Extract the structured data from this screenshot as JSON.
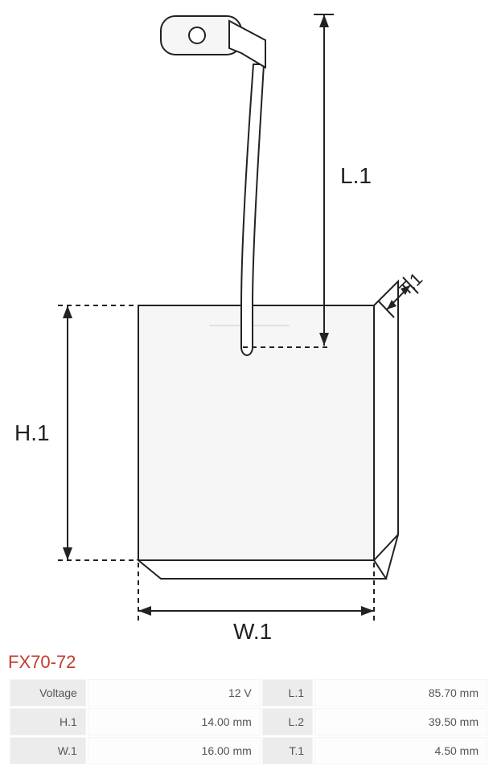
{
  "part": {
    "title": "FX70-72"
  },
  "diagram": {
    "labels": {
      "L1": "L.1",
      "H1": "H.1",
      "W1": "W.1",
      "T1": "T.1"
    },
    "colors": {
      "stroke": "#222222",
      "fill_block": "#f6f6f6",
      "fill_terminal": "#f6f6f6",
      "background": "#ffffff",
      "label_text": "#222222"
    },
    "stroke_width": 2,
    "font_size_label": 28,
    "font_family": "Arial"
  },
  "specs": {
    "rows": [
      {
        "left_label": "Voltage",
        "left_value": "12 V",
        "right_label": "L.1",
        "right_value": "85.70 mm"
      },
      {
        "left_label": "H.1",
        "left_value": "14.00 mm",
        "right_label": "L.2",
        "right_value": "39.50 mm"
      },
      {
        "left_label": "W.1",
        "left_value": "16.00 mm",
        "right_label": "T.1",
        "right_value": "4.50 mm"
      }
    ]
  },
  "table_style": {
    "label_bg": "#ececec",
    "value_bg": "#fdfdfd",
    "border_color": "#f4f4f4",
    "text_color": "#555555",
    "font_size": 14
  }
}
